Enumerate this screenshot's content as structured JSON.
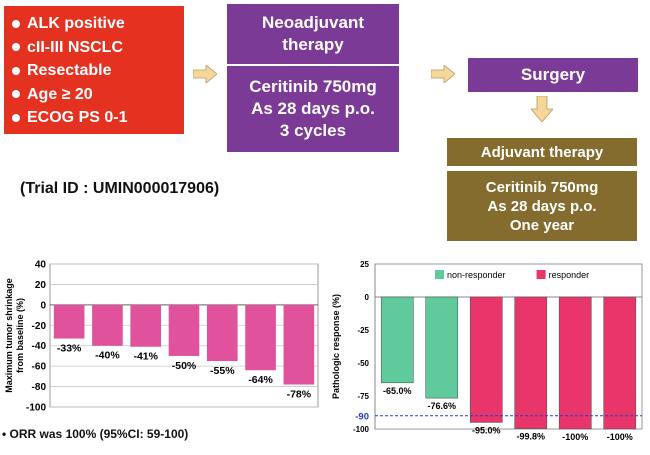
{
  "eligibility": {
    "items": [
      "ALK positive",
      "cII-III NSCLC",
      "Resectable",
      "Age ≥ 20",
      "ECOG PS 0-1"
    ],
    "color": "#e5311f"
  },
  "neoadjuvant": {
    "title": "Neoadjuvant\ntherapy",
    "detail": "Ceritinib 750mg\nAs 28 days p.o.\n3 cycles",
    "color": "#7b3a96"
  },
  "surgery": {
    "label": "Surgery",
    "color": "#7b3a96"
  },
  "adjuvant": {
    "title": "Adjuvant therapy",
    "detail": "Ceritinib 750mg\nAs 28 days p.o.\nOne year",
    "color": "#846b2e"
  },
  "arrow_color": "#f5d79c",
  "trial_id": "(Trial ID : UMIN000017906)",
  "orr_note": "ORR was 100% (95%CI: 59-100)",
  "chart_data": [
    {
      "type": "bar",
      "ylabel": "Maximum tumor shrinkage\nfrom baseline (%)",
      "ylim": [
        -100,
        40
      ],
      "yticks": [
        40,
        20,
        0,
        -20,
        -40,
        -60,
        -80,
        -100
      ],
      "values": [
        -33,
        -40,
        -41,
        -50,
        -55,
        -64,
        -78
      ],
      "labels": [
        "-33%",
        "-40%",
        "-41%",
        "-50%",
        "-55%",
        "-64%",
        "-78%"
      ],
      "color": "#e0529b",
      "grid": true
    },
    {
      "type": "bar",
      "ylabel": "Pathologic response (%)",
      "ylim": [
        -100,
        25
      ],
      "yticks": [
        25,
        0,
        -25,
        -50,
        -75,
        -100
      ],
      "values": [
        -65.0,
        -76.6,
        -95.0,
        -99.8,
        -100,
        -100
      ],
      "labels": [
        "-65.0%",
        "-76.6%",
        "-95.0%",
        "-99.8%",
        "-100%",
        "-100%"
      ],
      "groups": [
        "non-responder",
        "non-responder",
        "responder",
        "responder",
        "responder",
        "responder"
      ],
      "legend": [
        "non-responder",
        "responder"
      ],
      "colors": {
        "non-responder": "#5fcb9d",
        "responder": "#e8366a"
      },
      "reference_line": {
        "value": -90,
        "label": "-90",
        "color": "#1f3ccc"
      },
      "grid": false
    }
  ]
}
